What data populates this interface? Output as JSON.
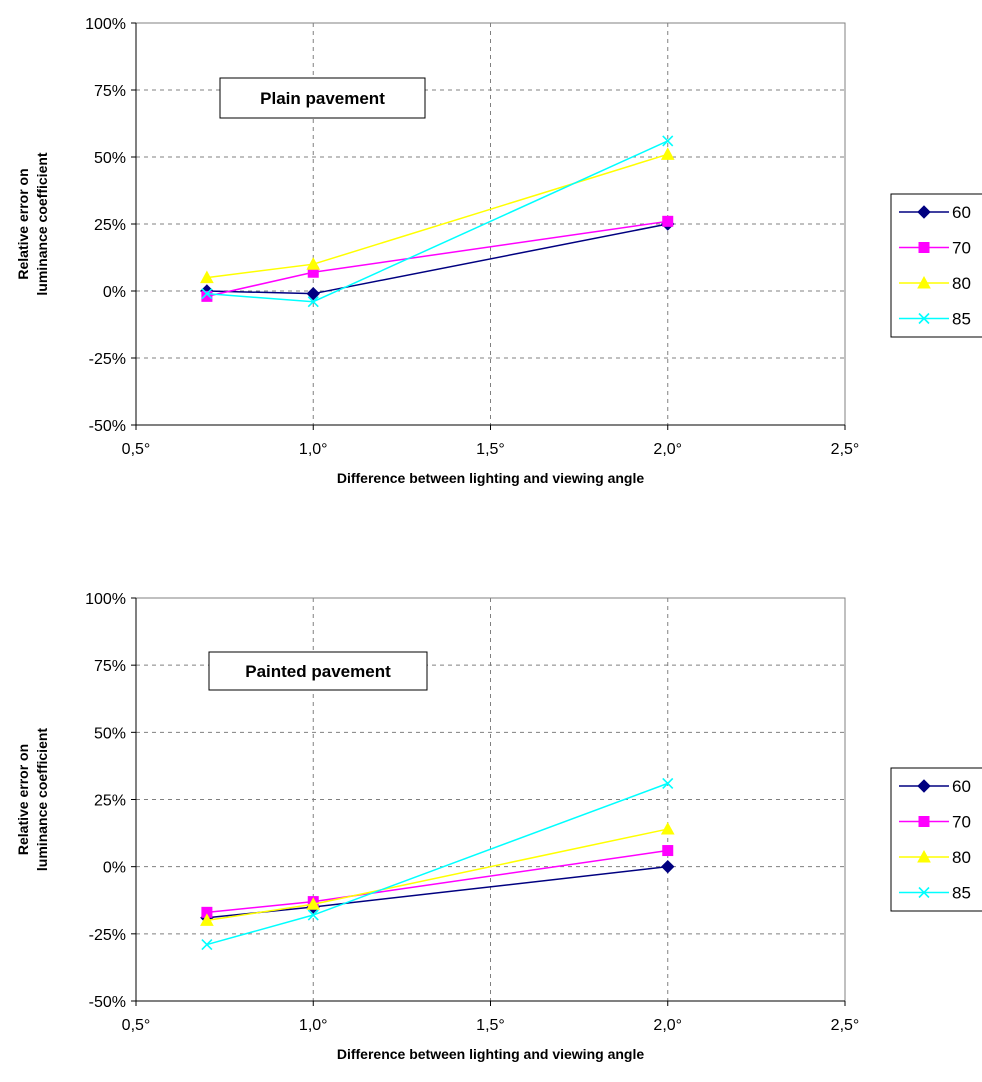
{
  "chart_data": [
    {
      "type": "line",
      "annotation": "Plain pavement",
      "xlabel": "Difference between lighting and viewing angle",
      "ylabel": [
        "Relative error on",
        "luminance coefficient"
      ],
      "xlim": [
        0.5,
        2.5
      ],
      "ylim": [
        -50,
        100
      ],
      "x_ticks": [
        "0,5°",
        "1,0°",
        "1,5°",
        "2,0°",
        "2,5°"
      ],
      "y_ticks": [
        "-50%",
        "-25%",
        "0%",
        "25%",
        "50%",
        "75%",
        "100%"
      ],
      "grid": true,
      "legend_position": "right",
      "x": [
        0.7,
        1.0,
        2.0
      ],
      "series": [
        {
          "name": "60",
          "color": "#000080",
          "marker": "diamond",
          "values": [
            0,
            -1,
            25
          ]
        },
        {
          "name": "70",
          "color": "#ff00ff",
          "marker": "square",
          "values": [
            -2,
            7,
            26
          ]
        },
        {
          "name": "80",
          "color": "#ffff00",
          "marker": "triangle",
          "values": [
            5,
            10,
            51
          ]
        },
        {
          "name": "85",
          "color": "#00ffff",
          "marker": "x",
          "values": [
            -1,
            -4,
            56
          ]
        }
      ]
    },
    {
      "type": "line",
      "annotation": "Painted pavement",
      "xlabel": "Difference between lighting and viewing angle",
      "ylabel": [
        "Relative error on",
        "luminance coefficient"
      ],
      "xlim": [
        0.5,
        2.5
      ],
      "ylim": [
        -50,
        100
      ],
      "x_ticks": [
        "0,5°",
        "1,0°",
        "1,5°",
        "2,0°",
        "2,5°"
      ],
      "y_ticks": [
        "-50%",
        "-25%",
        "0%",
        "25%",
        "50%",
        "75%",
        "100%"
      ],
      "grid": true,
      "legend_position": "right",
      "x": [
        0.7,
        1.0,
        2.0
      ],
      "series": [
        {
          "name": "60",
          "color": "#000080",
          "marker": "diamond",
          "values": [
            -19,
            -15,
            0
          ]
        },
        {
          "name": "70",
          "color": "#ff00ff",
          "marker": "square",
          "values": [
            -17,
            -13,
            6
          ]
        },
        {
          "name": "80",
          "color": "#ffff00",
          "marker": "triangle",
          "values": [
            -20,
            -14,
            14
          ]
        },
        {
          "name": "85",
          "color": "#00ffff",
          "marker": "x",
          "values": [
            -29,
            -18,
            31
          ]
        }
      ]
    }
  ]
}
